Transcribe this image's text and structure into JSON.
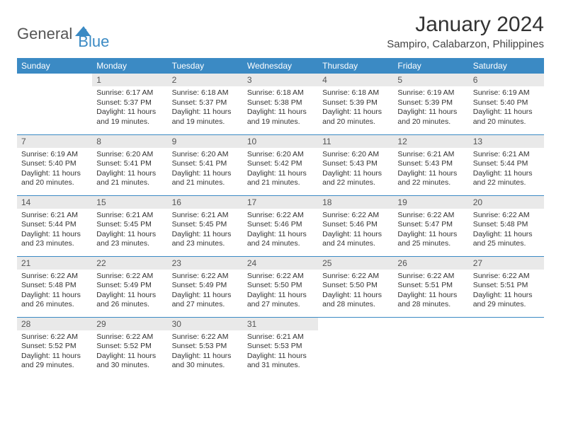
{
  "brand": {
    "part1": "General",
    "part2": "Blue"
  },
  "title": "January 2024",
  "location": "Sampiro, Calabarzon, Philippines",
  "colors": {
    "accent": "#3b8ac4",
    "text": "#333333",
    "daybar": "#e9e9e9",
    "white": "#ffffff"
  },
  "weekdays": [
    "Sunday",
    "Monday",
    "Tuesday",
    "Wednesday",
    "Thursday",
    "Friday",
    "Saturday"
  ],
  "layout": {
    "first_day_index": 1,
    "days_in_month": 31,
    "rows": 5,
    "cols": 7
  },
  "days": {
    "1": {
      "sunrise": "Sunrise: 6:17 AM",
      "sunset": "Sunset: 5:37 PM",
      "daylight": "Daylight: 11 hours and 19 minutes."
    },
    "2": {
      "sunrise": "Sunrise: 6:18 AM",
      "sunset": "Sunset: 5:37 PM",
      "daylight": "Daylight: 11 hours and 19 minutes."
    },
    "3": {
      "sunrise": "Sunrise: 6:18 AM",
      "sunset": "Sunset: 5:38 PM",
      "daylight": "Daylight: 11 hours and 19 minutes."
    },
    "4": {
      "sunrise": "Sunrise: 6:18 AM",
      "sunset": "Sunset: 5:39 PM",
      "daylight": "Daylight: 11 hours and 20 minutes."
    },
    "5": {
      "sunrise": "Sunrise: 6:19 AM",
      "sunset": "Sunset: 5:39 PM",
      "daylight": "Daylight: 11 hours and 20 minutes."
    },
    "6": {
      "sunrise": "Sunrise: 6:19 AM",
      "sunset": "Sunset: 5:40 PM",
      "daylight": "Daylight: 11 hours and 20 minutes."
    },
    "7": {
      "sunrise": "Sunrise: 6:19 AM",
      "sunset": "Sunset: 5:40 PM",
      "daylight": "Daylight: 11 hours and 20 minutes."
    },
    "8": {
      "sunrise": "Sunrise: 6:20 AM",
      "sunset": "Sunset: 5:41 PM",
      "daylight": "Daylight: 11 hours and 21 minutes."
    },
    "9": {
      "sunrise": "Sunrise: 6:20 AM",
      "sunset": "Sunset: 5:41 PM",
      "daylight": "Daylight: 11 hours and 21 minutes."
    },
    "10": {
      "sunrise": "Sunrise: 6:20 AM",
      "sunset": "Sunset: 5:42 PM",
      "daylight": "Daylight: 11 hours and 21 minutes."
    },
    "11": {
      "sunrise": "Sunrise: 6:20 AM",
      "sunset": "Sunset: 5:43 PM",
      "daylight": "Daylight: 11 hours and 22 minutes."
    },
    "12": {
      "sunrise": "Sunrise: 6:21 AM",
      "sunset": "Sunset: 5:43 PM",
      "daylight": "Daylight: 11 hours and 22 minutes."
    },
    "13": {
      "sunrise": "Sunrise: 6:21 AM",
      "sunset": "Sunset: 5:44 PM",
      "daylight": "Daylight: 11 hours and 22 minutes."
    },
    "14": {
      "sunrise": "Sunrise: 6:21 AM",
      "sunset": "Sunset: 5:44 PM",
      "daylight": "Daylight: 11 hours and 23 minutes."
    },
    "15": {
      "sunrise": "Sunrise: 6:21 AM",
      "sunset": "Sunset: 5:45 PM",
      "daylight": "Daylight: 11 hours and 23 minutes."
    },
    "16": {
      "sunrise": "Sunrise: 6:21 AM",
      "sunset": "Sunset: 5:45 PM",
      "daylight": "Daylight: 11 hours and 23 minutes."
    },
    "17": {
      "sunrise": "Sunrise: 6:22 AM",
      "sunset": "Sunset: 5:46 PM",
      "daylight": "Daylight: 11 hours and 24 minutes."
    },
    "18": {
      "sunrise": "Sunrise: 6:22 AM",
      "sunset": "Sunset: 5:46 PM",
      "daylight": "Daylight: 11 hours and 24 minutes."
    },
    "19": {
      "sunrise": "Sunrise: 6:22 AM",
      "sunset": "Sunset: 5:47 PM",
      "daylight": "Daylight: 11 hours and 25 minutes."
    },
    "20": {
      "sunrise": "Sunrise: 6:22 AM",
      "sunset": "Sunset: 5:48 PM",
      "daylight": "Daylight: 11 hours and 25 minutes."
    },
    "21": {
      "sunrise": "Sunrise: 6:22 AM",
      "sunset": "Sunset: 5:48 PM",
      "daylight": "Daylight: 11 hours and 26 minutes."
    },
    "22": {
      "sunrise": "Sunrise: 6:22 AM",
      "sunset": "Sunset: 5:49 PM",
      "daylight": "Daylight: 11 hours and 26 minutes."
    },
    "23": {
      "sunrise": "Sunrise: 6:22 AM",
      "sunset": "Sunset: 5:49 PM",
      "daylight": "Daylight: 11 hours and 27 minutes."
    },
    "24": {
      "sunrise": "Sunrise: 6:22 AM",
      "sunset": "Sunset: 5:50 PM",
      "daylight": "Daylight: 11 hours and 27 minutes."
    },
    "25": {
      "sunrise": "Sunrise: 6:22 AM",
      "sunset": "Sunset: 5:50 PM",
      "daylight": "Daylight: 11 hours and 28 minutes."
    },
    "26": {
      "sunrise": "Sunrise: 6:22 AM",
      "sunset": "Sunset: 5:51 PM",
      "daylight": "Daylight: 11 hours and 28 minutes."
    },
    "27": {
      "sunrise": "Sunrise: 6:22 AM",
      "sunset": "Sunset: 5:51 PM",
      "daylight": "Daylight: 11 hours and 29 minutes."
    },
    "28": {
      "sunrise": "Sunrise: 6:22 AM",
      "sunset": "Sunset: 5:52 PM",
      "daylight": "Daylight: 11 hours and 29 minutes."
    },
    "29": {
      "sunrise": "Sunrise: 6:22 AM",
      "sunset": "Sunset: 5:52 PM",
      "daylight": "Daylight: 11 hours and 30 minutes."
    },
    "30": {
      "sunrise": "Sunrise: 6:22 AM",
      "sunset": "Sunset: 5:53 PM",
      "daylight": "Daylight: 11 hours and 30 minutes."
    },
    "31": {
      "sunrise": "Sunrise: 6:21 AM",
      "sunset": "Sunset: 5:53 PM",
      "daylight": "Daylight: 11 hours and 31 minutes."
    }
  }
}
